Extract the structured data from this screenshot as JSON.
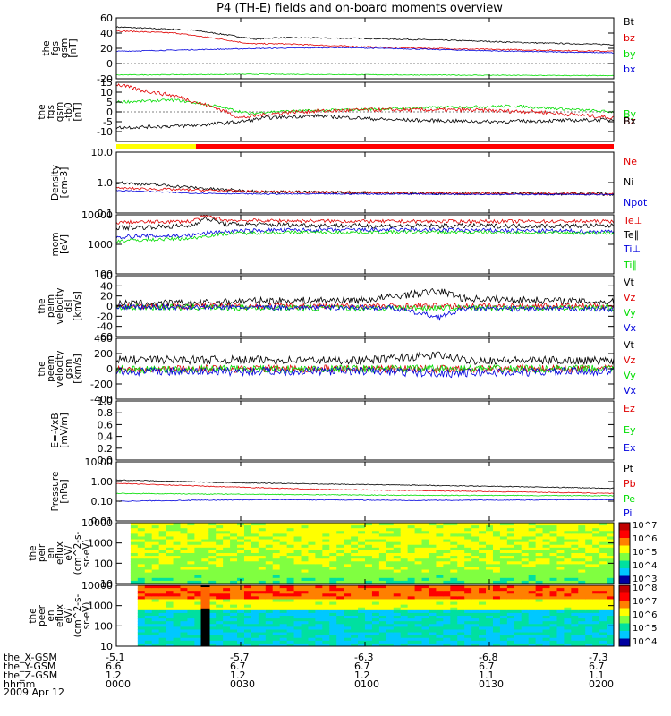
{
  "title": "P4 (TH-E) fields and on-board moments overview",
  "date_label": "2009 Apr 12",
  "colors": {
    "black": "#000000",
    "red": "#e00000",
    "green": "#00dd00",
    "blue": "#0000dd",
    "yellow": "#ffff00",
    "barRed": "#ff0000"
  },
  "ephemeris": {
    "row_labels": [
      "the_X-GSM",
      "the_Y-GSM",
      "the_Z-GSM",
      "hhmm"
    ],
    "columns": [
      [
        "-5.1",
        "6.6",
        "1.2",
        "0000"
      ],
      [
        "-5.7",
        "6.7",
        "1.2",
        "0030"
      ],
      [
        "-6.3",
        "6.7",
        "1.2",
        "0100"
      ],
      [
        "-6.8",
        "6.7",
        "1.1",
        "0130"
      ],
      [
        "-7.3",
        "6.7",
        "1.1",
        "0200"
      ]
    ]
  },
  "status_bar": {
    "segments": [
      {
        "color": "yellow",
        "until": 0.16
      },
      {
        "color": "barRed",
        "until": 1.0
      }
    ]
  },
  "chart_data": [
    {
      "type": "line",
      "ylabel": "the\nfgs\ngsm\n[nT]",
      "ylim": [
        -20,
        60
      ],
      "yscale": "linear",
      "yticks": [
        "60",
        "40",
        "20",
        "0",
        "-20"
      ],
      "ytick_values": [
        60,
        40,
        20,
        0,
        -20
      ],
      "legend": [
        "Bt",
        "bz",
        "by",
        "bx"
      ],
      "series": [
        {
          "name": "Bt",
          "color": "black",
          "points": [
            [
              0,
              48
            ],
            [
              0.15,
              44
            ],
            [
              0.22,
              38
            ],
            [
              0.28,
              32
            ],
            [
              0.32,
              34
            ],
            [
              0.5,
              33
            ],
            [
              0.7,
              30
            ],
            [
              0.85,
              27
            ],
            [
              1,
              25
            ]
          ],
          "noise": 0.8
        },
        {
          "name": "bz",
          "color": "red",
          "points": [
            [
              0,
              43
            ],
            [
              0.12,
              40
            ],
            [
              0.2,
              33
            ],
            [
              0.27,
              26
            ],
            [
              0.33,
              26
            ],
            [
              0.5,
              22
            ],
            [
              0.7,
              19
            ],
            [
              1,
              16
            ]
          ],
          "noise": 0.8
        },
        {
          "name": "by",
          "color": "blue",
          "points": [
            [
              0,
              16
            ],
            [
              0.15,
              18
            ],
            [
              0.3,
              20
            ],
            [
              0.45,
              21
            ],
            [
              0.6,
              19
            ],
            [
              0.8,
              16
            ],
            [
              1,
              14
            ]
          ],
          "noise": 0.6
        },
        {
          "name": "bx",
          "color": "green",
          "points": [
            [
              0,
              -15
            ],
            [
              0.3,
              -14
            ],
            [
              0.6,
              -15
            ],
            [
              1,
              -16
            ]
          ],
          "noise": 0.5
        }
      ]
    },
    {
      "type": "line",
      "ylabel": "the\nfgs\ngsm\n-tb0\n[nT]",
      "ylim": [
        -15,
        15
      ],
      "yscale": "linear",
      "yticks": [
        "15",
        "10",
        "5",
        "0",
        "-5",
        "-10"
      ],
      "ytick_values": [
        15,
        10,
        5,
        0,
        -5,
        -10
      ],
      "legend": [
        "By",
        "Bz",
        "Bx"
      ],
      "series": [
        {
          "name": "By",
          "color": "green",
          "points": [
            [
              0,
              5
            ],
            [
              0.12,
              6
            ],
            [
              0.2,
              3
            ],
            [
              0.27,
              -1
            ],
            [
              0.3,
              0
            ],
            [
              0.45,
              1
            ],
            [
              0.6,
              2
            ],
            [
              0.8,
              3
            ],
            [
              1,
              0
            ]
          ],
          "noise": 0.7
        },
        {
          "name": "Bz",
          "color": "red",
          "points": [
            [
              0,
              14
            ],
            [
              0.05,
              11
            ],
            [
              0.12,
              8
            ],
            [
              0.2,
              2
            ],
            [
              0.25,
              -3
            ],
            [
              0.28,
              -2
            ],
            [
              0.35,
              0
            ],
            [
              0.5,
              1
            ],
            [
              0.7,
              1
            ],
            [
              0.85,
              0
            ],
            [
              1,
              -3
            ]
          ],
          "noise": 1.0
        },
        {
          "name": "Bx",
          "color": "black",
          "points": [
            [
              0,
              -8
            ],
            [
              0.15,
              -7
            ],
            [
              0.25,
              -5
            ],
            [
              0.3,
              -3
            ],
            [
              0.4,
              -2
            ],
            [
              0.55,
              -4
            ],
            [
              0.75,
              -5
            ],
            [
              1,
              -4
            ]
          ],
          "noise": 0.9
        }
      ]
    },
    {
      "type": "line",
      "ylabel": "Density\n[cm-3]",
      "ylim": [
        0.1,
        10
      ],
      "yscale": "log",
      "yticks": [
        "10.0",
        "1.0",
        "0.1"
      ],
      "ytick_values": [
        10,
        1,
        0.1
      ],
      "legend": [
        "Ne",
        "Ni",
        "Npot"
      ],
      "series": [
        {
          "name": "Ni",
          "color": "black",
          "points": [
            [
              0,
              1.0
            ],
            [
              0.1,
              0.8
            ],
            [
              0.2,
              0.6
            ],
            [
              0.3,
              0.5
            ],
            [
              0.6,
              0.45
            ],
            [
              1,
              0.42
            ]
          ],
          "noise": 0.05
        },
        {
          "name": "Ne",
          "color": "red",
          "points": [
            [
              0,
              0.65
            ],
            [
              0.1,
              0.6
            ],
            [
              0.2,
              0.55
            ],
            [
              0.3,
              0.5
            ],
            [
              0.6,
              0.45
            ],
            [
              1,
              0.42
            ]
          ],
          "noise": 0.04
        },
        {
          "name": "Npot",
          "color": "blue",
          "points": [
            [
              0,
              0.55
            ],
            [
              0.15,
              0.45
            ],
            [
              0.3,
              0.42
            ],
            [
              0.6,
              0.42
            ],
            [
              1,
              0.4
            ]
          ],
          "noise": 0.02
        }
      ]
    },
    {
      "type": "line",
      "ylabel": "mom\n[eV]",
      "ylim": [
        100,
        10000
      ],
      "yscale": "log",
      "yticks": [
        "10000",
        "1000",
        "100"
      ],
      "ytick_values": [
        10000,
        1000,
        100
      ],
      "legend": [
        "Te⊥",
        "Te∥",
        "Ti⊥",
        "Ti∥"
      ],
      "series": [
        {
          "name": "Te⊥",
          "color": "red",
          "points": [
            [
              0,
              5500
            ],
            [
              0.15,
              6000
            ],
            [
              0.18,
              9000
            ],
            [
              0.22,
              6500
            ],
            [
              0.5,
              6000
            ],
            [
              1,
              6000
            ]
          ],
          "noise": 0.06
        },
        {
          "name": "Te∥",
          "color": "black",
          "points": [
            [
              0,
              3600
            ],
            [
              0.15,
              4200
            ],
            [
              0.18,
              7500
            ],
            [
              0.22,
              4800
            ],
            [
              0.5,
              4200
            ],
            [
              1,
              4200
            ]
          ],
          "noise": 0.08
        },
        {
          "name": "Ti⊥",
          "color": "blue",
          "points": [
            [
              0,
              1800
            ],
            [
              0.15,
              2000
            ],
            [
              0.2,
              2600
            ],
            [
              0.3,
              3000
            ],
            [
              0.6,
              3100
            ],
            [
              1,
              2700
            ]
          ],
          "noise": 0.07
        },
        {
          "name": "Ti∥",
          "color": "green",
          "points": [
            [
              0,
              1300
            ],
            [
              0.15,
              1600
            ],
            [
              0.22,
              2300
            ],
            [
              0.3,
              2500
            ],
            [
              0.6,
              2600
            ],
            [
              1,
              2400
            ]
          ],
          "noise": 0.06
        }
      ]
    },
    {
      "type": "line",
      "ylabel": "the\npeim\nvelocity\ndsl\n[km/s]",
      "ylim": [
        -60,
        60
      ],
      "yscale": "linear",
      "yticks": [
        "60",
        "40",
        "20",
        "0",
        "-20",
        "-40",
        "-60"
      ],
      "ytick_values": [
        60,
        40,
        20,
        0,
        -20,
        -40,
        -60
      ],
      "legend": [
        "Vt",
        "Vz",
        "Vy",
        "Vx"
      ],
      "series": [
        {
          "name": "Vt",
          "color": "black",
          "points": [
            [
              0,
              5
            ],
            [
              0.15,
              6
            ],
            [
              0.25,
              10
            ],
            [
              0.5,
              12
            ],
            [
              0.65,
              30
            ],
            [
              0.7,
              15
            ],
            [
              1,
              8
            ]
          ],
          "noise": 7
        },
        {
          "name": "Vz",
          "color": "red",
          "points": [
            [
              0,
              0
            ],
            [
              0.5,
              0
            ],
            [
              1,
              0
            ]
          ],
          "noise": 6
        },
        {
          "name": "Vy",
          "color": "green",
          "points": [
            [
              0,
              -2
            ],
            [
              0.5,
              -4
            ],
            [
              1,
              -3
            ]
          ],
          "noise": 6
        },
        {
          "name": "Vx",
          "color": "blue",
          "points": [
            [
              0,
              -2
            ],
            [
              0.55,
              -3
            ],
            [
              0.65,
              -22
            ],
            [
              0.7,
              -5
            ],
            [
              1,
              -6
            ]
          ],
          "noise": 5
        }
      ]
    },
    {
      "type": "line",
      "ylabel": "the\npeem\nvelocity\ngsm\n[km/s]",
      "ylim": [
        -400,
        400
      ],
      "yscale": "linear",
      "yticks": [
        "400",
        "200",
        "0",
        "-200",
        "-400"
      ],
      "ytick_values": [
        400,
        200,
        0,
        -200,
        -400
      ],
      "legend": [
        "Vt",
        "Vz",
        "Vy",
        "Vx"
      ],
      "series": [
        {
          "name": "Vt",
          "color": "black",
          "points": [
            [
              0,
              120
            ],
            [
              0.5,
              110
            ],
            [
              0.65,
              180
            ],
            [
              0.7,
              110
            ],
            [
              1,
              110
            ]
          ],
          "noise": 55
        },
        {
          "name": "Vz",
          "color": "red",
          "points": [
            [
              0,
              0
            ],
            [
              0.5,
              0
            ],
            [
              1,
              0
            ]
          ],
          "noise": 50
        },
        {
          "name": "Vy",
          "color": "green",
          "points": [
            [
              0,
              -10
            ],
            [
              0.5,
              0
            ],
            [
              1,
              0
            ]
          ],
          "noise": 50
        },
        {
          "name": "Vx",
          "color": "blue",
          "points": [
            [
              0,
              -40
            ],
            [
              0.5,
              -30
            ],
            [
              0.65,
              -60
            ],
            [
              1,
              -30
            ]
          ],
          "noise": 55
        }
      ]
    },
    {
      "type": "line",
      "ylabel": "E=-VxB\n[mV/m]",
      "ylim": [
        0,
        1
      ],
      "yscale": "linear",
      "yticks": [
        "1.0",
        "0.8",
        "0.6",
        "0.4",
        "0.2",
        "0.0"
      ],
      "ytick_values": [
        1,
        0.8,
        0.6,
        0.4,
        0.2,
        0
      ],
      "legend": [
        "Ez",
        "Ey",
        "Ex"
      ],
      "series": []
    },
    {
      "type": "line",
      "ylabel": "Pressure\n[nPa]",
      "ylim": [
        0.01,
        10
      ],
      "yscale": "log",
      "yticks": [
        "10.00",
        "1.00",
        "0.10",
        "0.01"
      ],
      "ytick_values": [
        10,
        1,
        0.1,
        0.01
      ],
      "legend": [
        "Pt",
        "Pb",
        "Pe",
        "Pi"
      ],
      "series": [
        {
          "name": "Pt",
          "color": "black",
          "points": [
            [
              0,
              1.2
            ],
            [
              0.2,
              0.9
            ],
            [
              0.4,
              0.75
            ],
            [
              0.7,
              0.6
            ],
            [
              1,
              0.45
            ]
          ],
          "noise": 0.02
        },
        {
          "name": "Pb",
          "color": "red",
          "points": [
            [
              0,
              0.8
            ],
            [
              0.2,
              0.55
            ],
            [
              0.4,
              0.4
            ],
            [
              0.7,
              0.32
            ],
            [
              1,
              0.25
            ]
          ],
          "noise": 0.02
        },
        {
          "name": "Pe",
          "color": "green",
          "points": [
            [
              0,
              0.25
            ],
            [
              0.3,
              0.22
            ],
            [
              0.6,
              0.2
            ],
            [
              1,
              0.19
            ]
          ],
          "noise": 0.02
        },
        {
          "name": "Pi",
          "color": "blue",
          "points": [
            [
              0,
              0.1
            ],
            [
              0.3,
              0.12
            ],
            [
              0.6,
              0.11
            ],
            [
              1,
              0.12
            ]
          ],
          "noise": 0.02
        }
      ]
    },
    {
      "type": "heatmap",
      "ylabel": "the\npeir\nen\neflux\neV/\n(cm^2-s-\nsr-eV)",
      "yscale": "log",
      "yticks": [
        "10000",
        "1000",
        "100",
        "10"
      ],
      "ytick_values": [
        10000,
        1000,
        100,
        10
      ],
      "colorbar": [
        "10^7",
        "10^6",
        "10^5",
        "10^4",
        "10^3"
      ]
    },
    {
      "type": "heatmap",
      "ylabel": "the\npeer\nen\neflux\neV/\n(cm^2-s-\nsr-eV)",
      "yscale": "log",
      "yticks": [
        "10000",
        "1000",
        "100",
        "10"
      ],
      "ytick_values": [
        10000,
        1000,
        100,
        10
      ],
      "colorbar": [
        "10^8",
        "10^7",
        "10^6",
        "10^5",
        "10^4"
      ]
    }
  ]
}
